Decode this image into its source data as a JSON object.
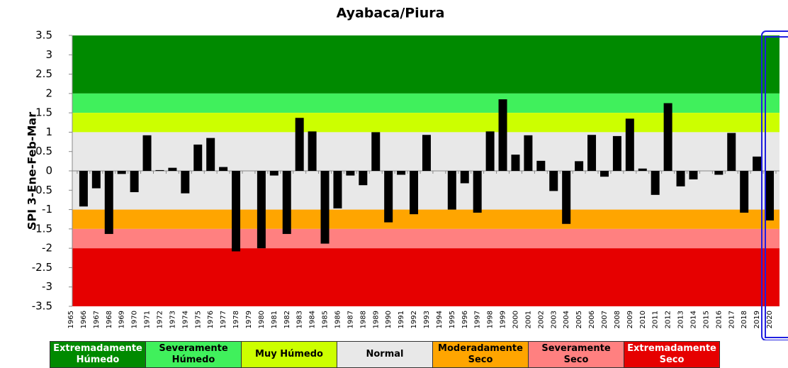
{
  "chart_data": {
    "type": "bar",
    "title": "Ayabaca/Piura",
    "ylabel": "SPI 3-Ene-Feb-Mar",
    "categories": [
      "1965",
      "1966",
      "1967",
      "1968",
      "1969",
      "1970",
      "1971",
      "1972",
      "1973",
      "1974",
      "1975",
      "1976",
      "1977",
      "1978",
      "1979",
      "1980",
      "1981",
      "1982",
      "1983",
      "1984",
      "1985",
      "1986",
      "1987",
      "1988",
      "1989",
      "1990",
      "1991",
      "1992",
      "1993",
      "1994",
      "1995",
      "1996",
      "1997",
      "1998",
      "1999",
      "2000",
      "2001",
      "2002",
      "2003",
      "2004",
      "2005",
      "2006",
      "2007",
      "2008",
      "2009",
      "2010",
      "2011",
      "2012",
      "2013",
      "2014",
      "2015",
      "2016",
      "2017",
      "2018",
      "2019",
      "2020"
    ],
    "values": [
      null,
      -0.92,
      -0.45,
      -1.63,
      -0.08,
      -0.55,
      0.92,
      0.02,
      0.08,
      -0.58,
      0.68,
      0.85,
      0.1,
      -2.08,
      0,
      -2.0,
      -0.12,
      -1.63,
      1.37,
      1.02,
      -1.88,
      -0.97,
      -0.12,
      -0.37,
      1.0,
      -1.33,
      -0.1,
      -1.12,
      0.93,
      0,
      -1.0,
      -0.32,
      -1.08,
      1.02,
      1.85,
      0.42,
      0.92,
      0.26,
      -0.52,
      -1.37,
      0.25,
      0.93,
      -0.15,
      0.9,
      1.35,
      0.06,
      -0.62,
      1.75,
      -0.4,
      -0.22,
      0,
      -0.1,
      0.98,
      -1.08,
      0.37,
      -1.28
    ],
    "color": "#000000",
    "ylim": [
      -3.5,
      3.5
    ],
    "yticks": [
      -3.5,
      -3,
      -2.5,
      -2,
      -1.5,
      -1,
      -0.5,
      0,
      0.5,
      1,
      1.5,
      2,
      2.5,
      3,
      3.5
    ],
    "bands": [
      {
        "name": "Extremadamente Húmedo",
        "from": 2,
        "to": 3.5,
        "color": "#008a00"
      },
      {
        "name": "Severamente Húmedo",
        "from": 1.5,
        "to": 2,
        "color": "#40f05c"
      },
      {
        "name": "Muy Húmedo",
        "from": 1,
        "to": 1.5,
        "color": "#ccff00"
      },
      {
        "name": "Normal",
        "from": -1,
        "to": 1,
        "color": "#e8e8e8"
      },
      {
        "name": "Moderadamente Seco",
        "from": -1.5,
        "to": -1,
        "color": "#ffa500"
      },
      {
        "name": "Severamente Seco",
        "from": -2,
        "to": -1.5,
        "color": "#ff8080"
      },
      {
        "name": "Extremadamente Seco",
        "from": -3.5,
        "to": -2,
        "color": "#e60000"
      }
    ]
  }
}
